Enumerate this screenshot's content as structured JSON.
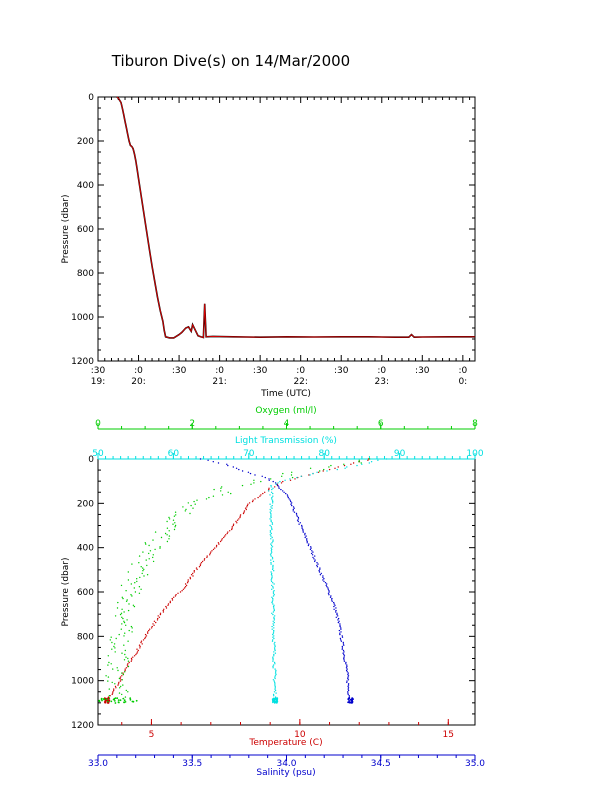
{
  "title": "Tiburon Dive(s) on 14/Mar/2000",
  "colors": {
    "axis": "#000000",
    "temperature": "#cc0000",
    "oxygen": "#00cc00",
    "light": "#00e0e0",
    "salinity": "#0000cc",
    "depth_trace_black": "#000000",
    "depth_trace_red": "#dd0000"
  },
  "chart_data": [
    {
      "type": "line",
      "xlabel": "Time (UTC)",
      "ylabel": "Pressure (dbar)",
      "x_unit": "minutes after 19:00 UTC",
      "xlim": [
        30,
        309
      ],
      "ylim": [
        1200,
        0
      ],
      "y_reversed": true,
      "y_ticks": [
        "0",
        "200",
        "400",
        "600",
        "800",
        "1000",
        "1200"
      ],
      "x_ticks": [
        {
          "top": ":30",
          "bottom": "19:"
        },
        {
          "top": ":0",
          "bottom": "20:"
        },
        {
          "top": ":30",
          "bottom": ""
        },
        {
          "top": ":0",
          "bottom": "21:"
        },
        {
          "top": ":30",
          "bottom": ""
        },
        {
          "top": ":0",
          "bottom": "22:"
        },
        {
          "top": ":30",
          "bottom": ""
        },
        {
          "top": ":0",
          "bottom": "23:"
        },
        {
          "top": ":30",
          "bottom": ""
        },
        {
          "top": ":0",
          "bottom": "0:"
        }
      ],
      "series": [
        {
          "x": [
            44,
            45,
            47,
            48,
            49,
            50,
            51,
            52,
            53,
            54,
            55,
            55.5,
            56,
            57,
            58,
            59,
            60,
            62,
            64,
            66,
            68,
            70,
            72,
            74,
            76,
            78,
            79,
            80,
            83,
            86,
            90,
            92,
            95,
            97,
            99,
            100,
            102,
            104,
            106,
            108,
            109,
            110,
            115,
            130,
            150,
            170,
            190,
            210,
            230,
            250,
            260,
            262,
            264,
            270,
            290,
            309
          ],
          "y": [
            0,
            5,
            25,
            50,
            80,
            110,
            140,
            170,
            200,
            220,
            225,
            230,
            235,
            260,
            290,
            330,
            370,
            450,
            530,
            610,
            690,
            770,
            840,
            910,
            970,
            1020,
            1060,
            1090,
            1095,
            1095,
            1080,
            1070,
            1050,
            1045,
            1065,
            1035,
            1060,
            1085,
            1090,
            1093,
            940,
            1090,
            1088,
            1090,
            1092,
            1090,
            1091,
            1090,
            1090,
            1092,
            1092,
            1080,
            1092,
            1091,
            1090,
            1090
          ]
        }
      ]
    },
    {
      "type": "scatter",
      "ylabel": "Pressure (dbar)",
      "ylim": [
        1200,
        0
      ],
      "y_reversed": true,
      "y_ticks": [
        "0",
        "200",
        "400",
        "600",
        "800",
        "1000",
        "1200"
      ],
      "axes": {
        "oxygen": {
          "label": "Oxygen (ml/l)",
          "range": [
            0,
            8
          ],
          "ticks": [
            "0",
            "2",
            "4",
            "6",
            "8"
          ],
          "position": "top"
        },
        "light": {
          "label": "Light Transmission (%)",
          "range": [
            50,
            100
          ],
          "ticks": [
            "50",
            "60",
            "70",
            "80",
            "90",
            "100"
          ],
          "position": "top"
        },
        "temperature": {
          "label": "Temperature (C)",
          "range": [
            3.2,
            15.9
          ],
          "ticks": [
            "5",
            "10",
            "15"
          ],
          "position": "bottom"
        },
        "salinity": {
          "label": "Salinity (psu)",
          "range": [
            33.0,
            35.0
          ],
          "ticks": [
            "33.0",
            "33.5",
            "34.0",
            "34.5",
            "35.0"
          ],
          "position": "bottom"
        }
      },
      "series": [
        {
          "name": "Temperature (C)",
          "axis": "temperature",
          "x": [
            12.4,
            11.5,
            10.3,
            9.3,
            8.8,
            8.3,
            8.0,
            7.6,
            7.0,
            6.5,
            6.1,
            5.6,
            5.2,
            4.8,
            4.5,
            4.2,
            4.0,
            3.8,
            3.6,
            3.5
          ],
          "y": [
            0,
            30,
            70,
            110,
            150,
            200,
            260,
            330,
            420,
            500,
            580,
            650,
            720,
            800,
            870,
            930,
            980,
            1030,
            1070,
            1090
          ]
        },
        {
          "name": "Salinity (psu)",
          "axis": "salinity",
          "x": [
            33.55,
            33.7,
            33.8,
            33.9,
            33.95,
            34.0,
            34.05,
            34.1,
            34.15,
            34.2,
            34.25,
            34.28,
            34.3,
            34.32,
            34.33,
            34.34
          ],
          "y": [
            0,
            30,
            60,
            90,
            120,
            160,
            250,
            350,
            450,
            550,
            650,
            750,
            850,
            950,
            1050,
            1090
          ]
        },
        {
          "name": "Oxygen (ml/l)",
          "axis": "oxygen",
          "x": [
            5.8,
            4.8,
            3.8,
            3.0,
            2.6,
            2.1,
            1.7,
            1.4,
            1.1,
            0.9,
            0.7,
            0.6,
            0.5,
            0.45,
            0.4,
            0.4
          ],
          "y": [
            0,
            40,
            80,
            120,
            160,
            200,
            260,
            330,
            410,
            490,
            580,
            680,
            780,
            880,
            980,
            1090
          ]
        },
        {
          "name": "Light Transmission (%)",
          "axis": "light",
          "x": [
            88,
            86,
            84,
            82,
            79,
            77,
            74,
            73,
            73,
            73.5
          ],
          "y": [
            0,
            15,
            30,
            45,
            60,
            80,
            100,
            130,
            300,
            1090
          ]
        }
      ]
    }
  ]
}
